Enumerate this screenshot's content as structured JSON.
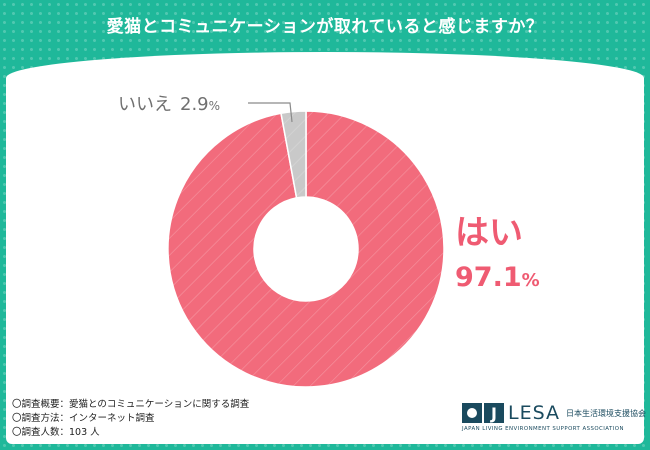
{
  "header": {
    "title": "愛猫とコミュニケーションが取れていると感じますか？"
  },
  "chart_data": {
    "type": "pie",
    "title": "愛猫とコミュニケーションが取れていると感じますか？",
    "unit": "%",
    "slices": [
      {
        "label": "はい",
        "value": 97.1,
        "value_text": "97.1",
        "color": "#f26b7c"
      },
      {
        "label": "いいえ",
        "value": 2.9,
        "value_text": "2.9",
        "color": "#c9c9c9"
      }
    ]
  },
  "notes": [
    "〇調査概要：愛猫とのコミュニケーションに関する調査",
    "〇調査方法：インターネット調査",
    "〇調査人数：103 人"
  ],
  "logo": {
    "mark": "J",
    "name": "LESA",
    "jp_name": "日本生活環境支援協会",
    "en_name": "JAPAN LIVING ENVIRONMENT SUPPORT ASSOCIATION"
  },
  "colors": {
    "background": "#1fb89a",
    "accent": "#ef5b72",
    "logo": "#1a4a5e"
  }
}
